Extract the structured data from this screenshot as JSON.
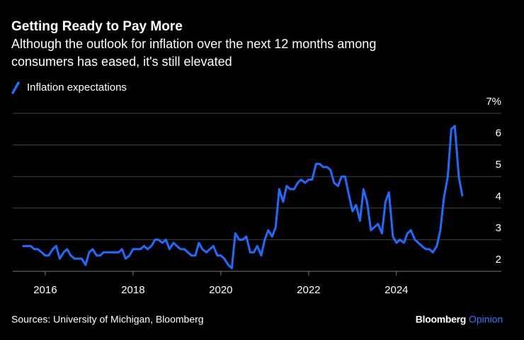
{
  "chart_data": {
    "type": "line",
    "title": "Getting Ready to Pay More",
    "subtitle": [
      "Although the outlook for inflation over the next 12 months among",
      "consumers has eased, it's still elevated"
    ],
    "source": "Sources: University of Michigan, Bloomberg",
    "brand": [
      "Bloomberg",
      "Opinion"
    ],
    "legend_position": "top-left",
    "grid": true,
    "xlim": [
      2015.26,
      2026.39
    ],
    "xticks": [
      2016,
      2018,
      2020,
      2022,
      2024
    ],
    "ylim": [
      2,
      7
    ],
    "yticks": [
      2,
      3,
      4,
      5,
      6,
      {
        "value": 7,
        "label": "7%"
      }
    ],
    "x": [
      2015.5,
      2015.58,
      2015.67,
      2015.75,
      2015.83,
      2015.92,
      2016,
      2016.08,
      2016.17,
      2016.25,
      2016.33,
      2016.42,
      2016.5,
      2016.58,
      2016.67,
      2016.75,
      2016.83,
      2016.92,
      2017,
      2017.08,
      2017.17,
      2017.25,
      2017.33,
      2017.42,
      2017.5,
      2017.58,
      2017.67,
      2017.75,
      2017.83,
      2017.92,
      2018,
      2018.08,
      2018.17,
      2018.25,
      2018.33,
      2018.42,
      2018.5,
      2018.58,
      2018.67,
      2018.75,
      2018.83,
      2018.92,
      2019,
      2019.08,
      2019.17,
      2019.25,
      2019.33,
      2019.42,
      2019.5,
      2019.58,
      2019.67,
      2019.75,
      2019.83,
      2019.92,
      2020,
      2020.08,
      2020.17,
      2020.25,
      2020.33,
      2020.42,
      2020.5,
      2020.58,
      2020.67,
      2020.75,
      2020.83,
      2020.92,
      2021,
      2021.08,
      2021.17,
      2021.25,
      2021.33,
      2021.42,
      2021.5,
      2021.58,
      2021.67,
      2021.75,
      2021.83,
      2021.92,
      2022,
      2022.08,
      2022.17,
      2022.25,
      2022.33,
      2022.42,
      2022.5,
      2022.58,
      2022.67,
      2022.75,
      2022.83,
      2022.92,
      2023,
      2023.08,
      2023.17,
      2023.25,
      2023.33,
      2023.42,
      2023.5,
      2023.58,
      2023.67,
      2023.75,
      2023.83,
      2023.92,
      2024,
      2024.08,
      2024.17,
      2024.25,
      2024.33,
      2024.42,
      2024.5,
      2024.58,
      2024.67,
      2024.75,
      2024.83,
      2024.92,
      2025,
      2025.08,
      2025.17,
      2025.25,
      2025.33,
      2025.42,
      2025.5
    ],
    "series": [
      {
        "name": "Inflation expectations",
        "color": "#1f6bff",
        "values": [
          2.8,
          2.8,
          2.8,
          2.7,
          2.7,
          2.6,
          2.5,
          2.5,
          2.7,
          2.8,
          2.4,
          2.6,
          2.7,
          2.5,
          2.4,
          2.4,
          2.4,
          2.2,
          2.6,
          2.7,
          2.5,
          2.5,
          2.6,
          2.6,
          2.6,
          2.6,
          2.6,
          2.7,
          2.4,
          2.5,
          2.7,
          2.7,
          2.7,
          2.8,
          2.7,
          2.8,
          3.0,
          3.0,
          2.9,
          3.0,
          2.7,
          2.9,
          2.8,
          2.7,
          2.7,
          2.6,
          2.5,
          2.5,
          2.9,
          2.7,
          2.6,
          2.7,
          2.8,
          2.5,
          2.5,
          2.4,
          2.2,
          2.1,
          3.2,
          3.0,
          3.0,
          3.1,
          2.6,
          2.6,
          2.8,
          2.5,
          3.0,
          3.3,
          3.1,
          3.4,
          4.6,
          4.2,
          4.7,
          4.6,
          4.6,
          4.8,
          4.9,
          4.8,
          4.9,
          4.9,
          5.4,
          5.4,
          5.3,
          5.3,
          5.2,
          4.8,
          4.7,
          5.0,
          5.0,
          4.4,
          3.9,
          4.1,
          3.6,
          4.6,
          4.2,
          3.3,
          3.4,
          3.5,
          3.2,
          4.2,
          4.5,
          3.1,
          2.9,
          3.0,
          2.9,
          3.2,
          3.3,
          3.0,
          2.9,
          2.8,
          2.7,
          2.7,
          2.6,
          2.8,
          3.3,
          4.3,
          5.0,
          6.5,
          6.6,
          5.0,
          4.4
        ]
      }
    ]
  }
}
